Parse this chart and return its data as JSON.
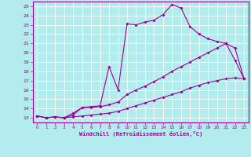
{
  "xlabel": "Windchill (Refroidissement éolien,°C)",
  "bg_color": "#b3ecec",
  "line_color": "#990099",
  "grid_color": "#ffffff",
  "xlim": [
    -0.5,
    23.5
  ],
  "ylim": [
    12.5,
    25.5
  ],
  "yticks": [
    13,
    14,
    15,
    16,
    17,
    18,
    19,
    20,
    21,
    22,
    23,
    24,
    25
  ],
  "xticks": [
    0,
    1,
    2,
    3,
    4,
    5,
    6,
    7,
    8,
    9,
    10,
    11,
    12,
    13,
    14,
    15,
    16,
    17,
    18,
    19,
    20,
    21,
    22,
    23
  ],
  "line1_x": [
    0,
    1,
    2,
    3,
    4,
    5,
    6,
    7,
    8,
    9,
    10,
    11,
    12,
    13,
    14,
    15,
    16,
    17,
    18,
    19,
    20,
    21,
    22,
    23
  ],
  "line1_y": [
    13.2,
    13.0,
    13.1,
    13.0,
    13.1,
    13.2,
    13.3,
    13.4,
    13.5,
    13.7,
    14.0,
    14.3,
    14.6,
    14.9,
    15.2,
    15.5,
    15.8,
    16.2,
    16.5,
    16.8,
    17.0,
    17.2,
    17.3,
    17.2
  ],
  "line2_x": [
    0,
    1,
    2,
    3,
    4,
    5,
    6,
    7,
    8,
    9,
    10,
    11,
    12,
    13,
    14,
    15,
    16,
    17,
    18,
    19,
    20,
    21,
    22,
    23
  ],
  "line2_y": [
    13.2,
    13.0,
    13.1,
    13.0,
    13.3,
    14.1,
    14.1,
    14.2,
    14.4,
    14.7,
    15.5,
    16.0,
    16.4,
    16.9,
    17.4,
    18.0,
    18.5,
    19.0,
    19.5,
    20.0,
    20.5,
    21.0,
    20.5,
    17.2
  ],
  "line3_x": [
    0,
    1,
    2,
    3,
    4,
    5,
    6,
    7,
    8,
    9,
    10,
    11,
    12,
    13,
    14,
    15,
    16,
    17,
    18,
    19,
    20,
    21,
    22,
    23
  ],
  "line3_y": [
    13.2,
    13.0,
    13.1,
    13.0,
    13.5,
    14.1,
    14.2,
    14.3,
    18.5,
    16.0,
    23.1,
    23.0,
    23.3,
    23.5,
    24.1,
    25.2,
    24.8,
    22.8,
    22.0,
    21.5,
    21.2,
    21.0,
    19.2,
    17.2
  ]
}
